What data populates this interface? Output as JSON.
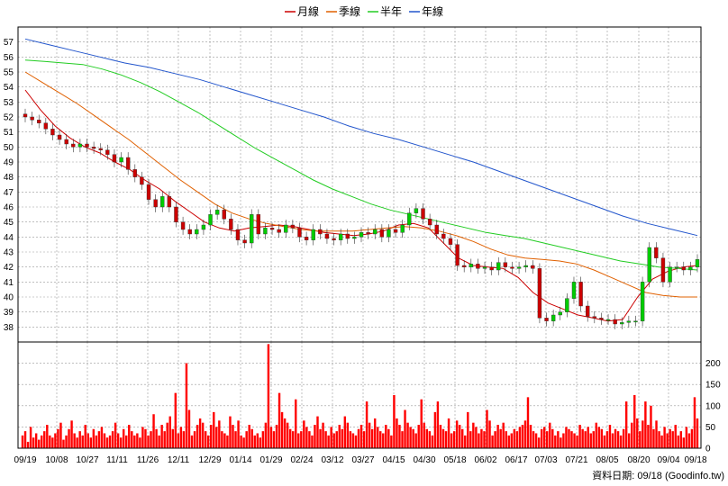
{
  "chart_data": {
    "type": "candlestick",
    "legend": [
      {
        "name": "月線",
        "color": "#cc0000"
      },
      {
        "name": "季線",
        "color": "#e06000"
      },
      {
        "name": "半年",
        "color": "#22cc22"
      },
      {
        "name": "年線",
        "color": "#2255cc"
      }
    ],
    "colors": {
      "up": "#00cc00",
      "down": "#cc0000",
      "volume": "#ff0000",
      "grid": "#999999"
    },
    "price_axis": {
      "min": 37,
      "max": 58,
      "ticks": [
        38,
        39,
        40,
        41,
        42,
        43,
        44,
        45,
        46,
        47,
        48,
        49,
        50,
        51,
        52,
        53,
        54,
        55,
        56,
        57
      ]
    },
    "volume_axis": {
      "min": 0,
      "max": 250,
      "ticks": [
        0,
        50,
        100,
        150,
        200
      ]
    },
    "x_labels": [
      "09/19",
      "10/08",
      "10/27",
      "11/11",
      "11/26",
      "12/11",
      "12/29",
      "01/14",
      "01/29",
      "02/24",
      "03/12",
      "03/27",
      "04/15",
      "04/30",
      "05/18",
      "06/02",
      "06/17",
      "07/03",
      "07/21",
      "08/05",
      "08/20",
      "09/04",
      "09/18"
    ],
    "close_series": {
      "sample_every": 2,
      "values": [
        52.0,
        51.8,
        51.6,
        51.2,
        50.8,
        50.5,
        50.2,
        50.0,
        50.2,
        50.0,
        49.9,
        49.8,
        49.5,
        49.0,
        49.3,
        48.5,
        48.0,
        47.5,
        46.5,
        46.0,
        46.7,
        46.0,
        45.0,
        44.5,
        44.2,
        44.5,
        44.8,
        45.5,
        45.8,
        45.2,
        44.5,
        43.8,
        43.6,
        45.5,
        44.2,
        44.6,
        44.5,
        44.3,
        44.8,
        44.6,
        44.0,
        43.8,
        44.5,
        44.2,
        43.9,
        43.8,
        44.2,
        43.9,
        44.0,
        44.3,
        44.2,
        44.5,
        44.0,
        44.5,
        44.3,
        44.8,
        45.6,
        45.9,
        45.2,
        44.8,
        44.2,
        43.9,
        43.5,
        42.1,
        42.0,
        42.2,
        41.9,
        42.0,
        41.8,
        42.3,
        42.0,
        41.9,
        42.0,
        42.1,
        41.9,
        38.6,
        38.4,
        38.8,
        39.0,
        39.9,
        41.0,
        39.4,
        38.7,
        38.6,
        38.5,
        38.5,
        38.2,
        38.3,
        38.4,
        38.4,
        41.0,
        43.3,
        42.6,
        41.0,
        42.0,
        42.0,
        41.8,
        42.0,
        42.5
      ]
    },
    "ma": {
      "月線": [
        53.8,
        52.5,
        51.4,
        50.6,
        50.0,
        49.6,
        49.0,
        48.5,
        47.8,
        47.2,
        46.4,
        45.7,
        45.0,
        44.6,
        44.4,
        44.6,
        44.7,
        44.8,
        44.7,
        44.5,
        44.3,
        44.2,
        44.1,
        44.2,
        44.4,
        44.8,
        44.9,
        44.6,
        43.6,
        42.6,
        42.1,
        42.0,
        41.9,
        41.3,
        40.3,
        39.6,
        39.2,
        38.8,
        38.6,
        38.4,
        38.5,
        40.0,
        41.2,
        41.7,
        42.0,
        42.1
      ],
      "季線": [
        55.0,
        54.3,
        53.6,
        52.9,
        52.1,
        51.3,
        50.5,
        49.6,
        48.7,
        47.8,
        47.0,
        46.2,
        45.6,
        45.2,
        44.9,
        44.7,
        44.5,
        44.4,
        44.4,
        44.4,
        44.5,
        44.6,
        44.7,
        44.6,
        44.4,
        44.1,
        43.7,
        43.2,
        42.8,
        42.6,
        42.5,
        42.4,
        42.2,
        41.8,
        41.3,
        40.8,
        40.3,
        40.1,
        40.0,
        40.0
      ],
      "半年": [
        55.8,
        55.7,
        55.6,
        55.5,
        55.2,
        54.8,
        54.3,
        53.7,
        53.0,
        52.3,
        51.5,
        50.7,
        49.9,
        49.2,
        48.5,
        47.8,
        47.2,
        46.7,
        46.2,
        45.8,
        45.5,
        45.2,
        44.9,
        44.6,
        44.3,
        44.1,
        43.9,
        43.6,
        43.3,
        43.0,
        42.7,
        42.4,
        42.2,
        42.0,
        41.9,
        41.8
      ],
      "年線": [
        57.2,
        56.8,
        56.4,
        56.0,
        55.6,
        55.3,
        54.9,
        54.5,
        54.0,
        53.5,
        53.0,
        52.5,
        52.0,
        51.4,
        50.9,
        50.5,
        50.0,
        49.5,
        49.0,
        48.4,
        47.8,
        47.2,
        46.6,
        46.0,
        45.4,
        44.9,
        44.5,
        44.1
      ]
    },
    "volume": {
      "sample_every": 1,
      "values": [
        30,
        40,
        15,
        50,
        25,
        35,
        20,
        30,
        40,
        55,
        30,
        25,
        35,
        45,
        60,
        20,
        30,
        45,
        65,
        35,
        25,
        40,
        30,
        55,
        35,
        25,
        45,
        30,
        40,
        50,
        35,
        25,
        30,
        40,
        60,
        35,
        25,
        45,
        30,
        55,
        40,
        30,
        35,
        25,
        50,
        45,
        30,
        40,
        80,
        45,
        30,
        55,
        40,
        60,
        75,
        45,
        130,
        35,
        50,
        40,
        200,
        90,
        30,
        40,
        55,
        70,
        60,
        40,
        30,
        55,
        85,
        50,
        65,
        40,
        35,
        30,
        75,
        55,
        40,
        65,
        30,
        25,
        40,
        55,
        45,
        30,
        35,
        25,
        40,
        60,
        245,
        50,
        40,
        55,
        130,
        85,
        70,
        60,
        45,
        40,
        115,
        35,
        40,
        65,
        50,
        40,
        30,
        55,
        75,
        45,
        60,
        40,
        30,
        50,
        35,
        40,
        55,
        45,
        75,
        60,
        40,
        35,
        30,
        45,
        55,
        40,
        110,
        60,
        45,
        70,
        50,
        40,
        35,
        55,
        45,
        30,
        125,
        70,
        55,
        40,
        90,
        60,
        50,
        45,
        35,
        55,
        115,
        60,
        45,
        40,
        30,
        85,
        110,
        55,
        45,
        40,
        70,
        35,
        40,
        65,
        55,
        45,
        30,
        85,
        40,
        60,
        50,
        35,
        45,
        40,
        90,
        65,
        30,
        40,
        55,
        45,
        60,
        40,
        30,
        35,
        45,
        40,
        50,
        55,
        65,
        120,
        55,
        40,
        35,
        25,
        45,
        50,
        40,
        60,
        45,
        30,
        40,
        25,
        35,
        50,
        45,
        40,
        35,
        30,
        55,
        45,
        40,
        50,
        35,
        40,
        60,
        50,
        45,
        30,
        40,
        55,
        35,
        45,
        40,
        30,
        45,
        110,
        35,
        60,
        125,
        70,
        40,
        65,
        110,
        55,
        100,
        45,
        65,
        40,
        30,
        50,
        35,
        45,
        40,
        55,
        30,
        40,
        25,
        50,
        35,
        45,
        120,
        70
      ]
    },
    "footer": "資料日期: 09/18 (Goodinfo.tw)"
  }
}
